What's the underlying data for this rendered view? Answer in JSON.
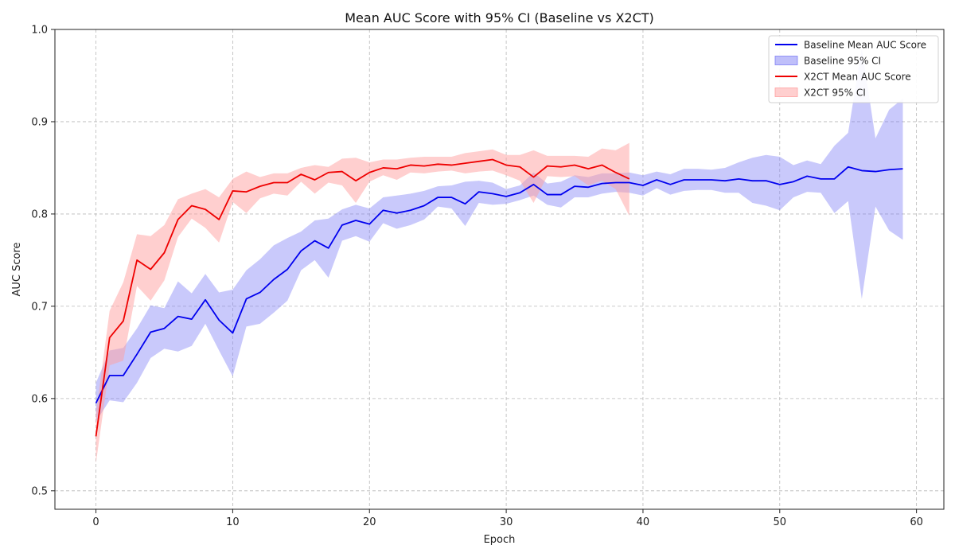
{
  "chart_data": {
    "type": "line",
    "title": "Mean AUC Score with 95% CI (Baseline vs X2CT)",
    "xlabel": "Epoch",
    "ylabel": "AUC Score",
    "xlim": [
      -3,
      62
    ],
    "ylim": [
      0.48,
      1.0
    ],
    "xticks": [
      0,
      10,
      20,
      30,
      40,
      50,
      60
    ],
    "yticks": [
      0.5,
      0.6,
      0.7,
      0.8,
      0.9,
      1.0
    ],
    "grid": true,
    "legend_position": "top-right",
    "series": [
      {
        "name": "Baseline Mean AUC Score",
        "ci_name": "Baseline 95% CI",
        "color": "#0000ee",
        "ci_color": "#7f7ff5",
        "x": [
          0,
          1,
          2,
          3,
          4,
          5,
          6,
          7,
          8,
          9,
          10,
          11,
          12,
          13,
          14,
          15,
          16,
          17,
          18,
          19,
          20,
          21,
          22,
          23,
          24,
          25,
          26,
          27,
          28,
          29,
          30,
          31,
          32,
          33,
          34,
          35,
          36,
          37,
          38,
          39,
          40,
          41,
          42,
          43,
          44,
          45,
          46,
          47,
          48,
          49,
          50,
          51,
          52,
          53,
          54,
          55,
          56,
          57,
          58,
          59
        ],
        "mean": [
          0.595,
          0.625,
          0.625,
          0.648,
          0.672,
          0.676,
          0.689,
          0.686,
          0.707,
          0.685,
          0.671,
          0.708,
          0.715,
          0.729,
          0.74,
          0.76,
          0.771,
          0.763,
          0.788,
          0.793,
          0.789,
          0.804,
          0.801,
          0.804,
          0.809,
          0.818,
          0.818,
          0.811,
          0.824,
          0.822,
          0.819,
          0.823,
          0.832,
          0.821,
          0.821,
          0.83,
          0.829,
          0.833,
          0.834,
          0.834,
          0.831,
          0.837,
          0.832,
          0.837,
          0.837,
          0.837,
          0.836,
          0.838,
          0.836,
          0.836,
          0.832,
          0.835,
          0.841,
          0.838,
          0.838,
          0.851,
          0.847,
          0.846,
          0.848,
          0.849
        ],
        "lower": [
          0.575,
          0.598,
          0.596,
          0.617,
          0.644,
          0.654,
          0.651,
          0.657,
          0.681,
          0.652,
          0.624,
          0.678,
          0.681,
          0.693,
          0.706,
          0.739,
          0.75,
          0.731,
          0.771,
          0.776,
          0.77,
          0.79,
          0.784,
          0.788,
          0.794,
          0.808,
          0.806,
          0.787,
          0.812,
          0.81,
          0.811,
          0.815,
          0.82,
          0.81,
          0.807,
          0.818,
          0.818,
          0.822,
          0.824,
          0.823,
          0.82,
          0.828,
          0.821,
          0.825,
          0.826,
          0.826,
          0.823,
          0.823,
          0.812,
          0.809,
          0.804,
          0.818,
          0.824,
          0.823,
          0.801,
          0.814,
          0.708,
          0.808,
          0.782,
          0.772
        ],
        "upper": [
          0.617,
          0.652,
          0.655,
          0.676,
          0.701,
          0.698,
          0.727,
          0.714,
          0.735,
          0.715,
          0.718,
          0.739,
          0.751,
          0.766,
          0.774,
          0.781,
          0.793,
          0.795,
          0.805,
          0.81,
          0.806,
          0.818,
          0.82,
          0.822,
          0.825,
          0.83,
          0.831,
          0.835,
          0.836,
          0.834,
          0.827,
          0.831,
          0.845,
          0.833,
          0.835,
          0.842,
          0.84,
          0.844,
          0.844,
          0.845,
          0.842,
          0.846,
          0.843,
          0.849,
          0.849,
          0.848,
          0.85,
          0.856,
          0.861,
          0.864,
          0.862,
          0.853,
          0.858,
          0.854,
          0.874,
          0.888,
          0.98,
          0.882,
          0.913,
          0.925
        ]
      },
      {
        "name": "X2CT Mean AUC Score",
        "ci_name": "X2CT 95% CI",
        "color": "#ee0000",
        "ci_color": "#ff9f9f",
        "x": [
          0,
          1,
          2,
          3,
          4,
          5,
          6,
          7,
          8,
          9,
          10,
          11,
          12,
          13,
          14,
          15,
          16,
          17,
          18,
          19,
          20,
          21,
          22,
          23,
          24,
          25,
          26,
          27,
          28,
          29,
          30,
          31,
          32,
          33,
          34,
          35,
          36,
          37,
          38,
          39
        ],
        "mean": [
          0.559,
          0.666,
          0.684,
          0.75,
          0.74,
          0.758,
          0.794,
          0.809,
          0.805,
          0.794,
          0.825,
          0.824,
          0.83,
          0.834,
          0.834,
          0.843,
          0.837,
          0.845,
          0.846,
          0.836,
          0.845,
          0.85,
          0.849,
          0.853,
          0.852,
          0.854,
          0.853,
          0.855,
          0.857,
          0.859,
          0.853,
          0.851,
          0.84,
          0.852,
          0.851,
          0.853,
          0.849,
          0.853,
          0.845,
          0.838
        ],
        "lower": [
          0.53,
          0.636,
          0.641,
          0.722,
          0.706,
          0.728,
          0.775,
          0.795,
          0.785,
          0.769,
          0.813,
          0.801,
          0.817,
          0.822,
          0.82,
          0.835,
          0.822,
          0.834,
          0.831,
          0.812,
          0.835,
          0.842,
          0.837,
          0.845,
          0.844,
          0.846,
          0.847,
          0.844,
          0.846,
          0.847,
          0.842,
          0.836,
          0.812,
          0.841,
          0.84,
          0.841,
          0.831,
          0.836,
          0.827,
          0.798
        ],
        "upper": [
          0.583,
          0.695,
          0.726,
          0.778,
          0.776,
          0.788,
          0.816,
          0.822,
          0.827,
          0.818,
          0.838,
          0.846,
          0.84,
          0.844,
          0.844,
          0.85,
          0.853,
          0.851,
          0.86,
          0.861,
          0.856,
          0.859,
          0.859,
          0.861,
          0.862,
          0.862,
          0.862,
          0.866,
          0.868,
          0.87,
          0.864,
          0.864,
          0.869,
          0.863,
          0.863,
          0.863,
          0.862,
          0.871,
          0.869,
          0.877
        ]
      }
    ]
  }
}
